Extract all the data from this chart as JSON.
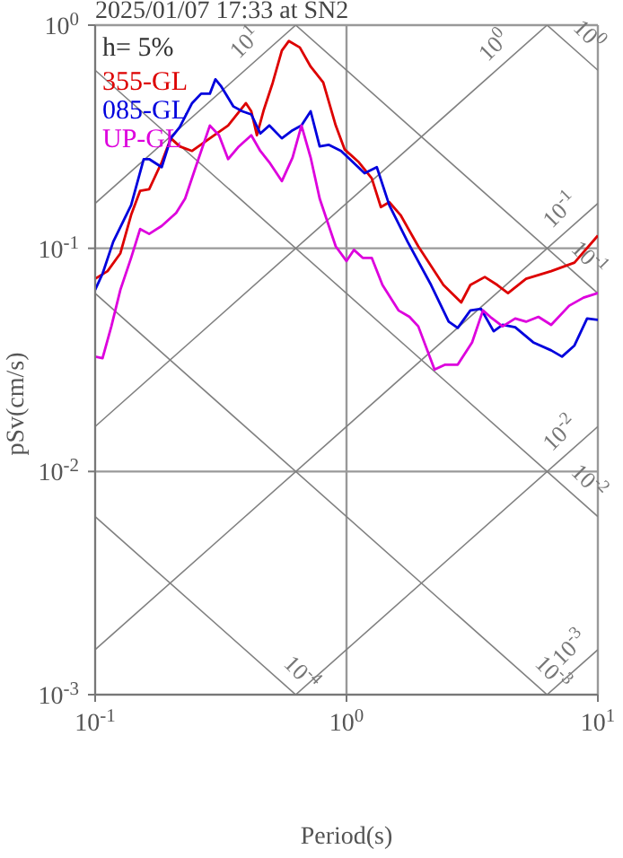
{
  "chart_data": {
    "type": "line",
    "title": "2025/01/07 17:33 at SN2",
    "xlabel": "Period(s)",
    "ylabel": "pSv(cm/s)",
    "log": "xy",
    "grid": true,
    "legend": "top left",
    "xlim": [
      0.1,
      10
    ],
    "xticks": [
      {
        "value": 0.1,
        "label": "10$^{-1}$"
      },
      {
        "value": 1,
        "label": "10$^{0}$"
      },
      {
        "value": 10,
        "label": "10$^{1}$"
      }
    ],
    "ylim": [
      0.001,
      1
    ],
    "yticks": [
      {
        "value": 0.001,
        "label": "10$^{-3}$"
      },
      {
        "value": 0.01,
        "label": "10$^{-2}$"
      },
      {
        "value": 0.1,
        "label": "10$^{-1}$"
      },
      {
        "value": 1,
        "label": "10$^{0}$"
      }
    ],
    "annotations": [
      "h= 5%",
      {
        "text": "10$^{1}$",
        "x": 0.45,
        "y": 0.72
      },
      {
        "text": "10$^{0}$",
        "x": 4.4,
        "y": 0.7
      },
      {
        "text": "10$^{0}$",
        "x": 8.07,
        "y": 0.78
      },
      {
        "text": "10$^{-1}$",
        "x": 8.07,
        "y": 0.128
      },
      {
        "text": "10$^{-1}$",
        "x": 8.07,
        "y": 0.078
      },
      {
        "text": "10$^{-2}$",
        "x": 8.07,
        "y": 0.0128
      },
      {
        "text": "10$^{-2}$",
        "x": 8.07,
        "y": 0.0078
      },
      {
        "text": "10$^{-3}$",
        "x": 8.8,
        "y": 0.0014
      },
      {
        "text": "10$^{-3}$",
        "x": 5.8,
        "y": 0.00108
      },
      {
        "text": "10$^{-4}$",
        "x": 0.58,
        "y": 0.00108
      }
    ],
    "series": [
      {
        "type": "line",
        "color": "#808080",
        "x": [
          0.1,
          0.628
        ],
        "values": [
          0.159,
          1
        ]
      },
      {
        "type": "line",
        "color": "#808080",
        "x": [
          0.1,
          6.28
        ],
        "values": [
          0.0159,
          1
        ]
      },
      {
        "type": "line",
        "color": "#808080",
        "x": [
          0.1,
          10
        ],
        "values": [
          0.00159,
          0.159
        ]
      },
      {
        "type": "line",
        "color": "#808080",
        "x": [
          0.628,
          10
        ],
        "values": [
          0.001,
          0.0159
        ]
      },
      {
        "type": "line",
        "color": "#808080",
        "x": [
          6.28,
          10
        ],
        "values": [
          0.001,
          0.00159
        ]
      },
      {
        "type": "line",
        "color": "#808080",
        "x": [
          6.28,
          10
        ],
        "values": [
          1,
          0.628
        ]
      },
      {
        "type": "line",
        "color": "#808080",
        "x": [
          0.628,
          10
        ],
        "values": [
          1,
          0.0628
        ]
      },
      {
        "type": "line",
        "color": "#808080",
        "x": [
          0.1,
          10
        ],
        "values": [
          0.628,
          0.00628
        ]
      },
      {
        "type": "line",
        "color": "#808080",
        "x": [
          0.1,
          6.28
        ],
        "values": [
          0.0628,
          0.001
        ]
      },
      {
        "type": "line",
        "color": "#808080",
        "x": [
          0.1,
          0.628
        ],
        "values": [
          0.00628,
          0.001
        ]
      },
      {
        "name": "355-GL",
        "color": "#dd0000",
        "x": [
          0.1,
          0.112,
          0.126,
          0.139,
          0.151,
          0.164,
          0.184,
          0.2,
          0.217,
          0.243,
          0.286,
          0.338,
          0.398,
          0.418,
          0.44,
          0.469,
          0.509,
          0.553,
          0.59,
          0.652,
          0.72,
          0.808,
          0.906,
          0.984,
          1.12,
          1.26,
          1.37,
          1.48,
          1.64,
          1.93,
          2.43,
          2.86,
          3.11,
          3.55,
          3.98,
          4.39,
          5.18,
          6.52,
          8.07,
          10
        ],
        "values": [
          0.073,
          0.079,
          0.095,
          0.141,
          0.181,
          0.184,
          0.243,
          0.311,
          0.286,
          0.273,
          0.311,
          0.355,
          0.447,
          0.411,
          0.321,
          0.418,
          0.553,
          0.769,
          0.849,
          0.794,
          0.652,
          0.553,
          0.355,
          0.277,
          0.243,
          0.206,
          0.153,
          0.161,
          0.141,
          0.102,
          0.0685,
          0.0572,
          0.0685,
          0.0744,
          0.0685,
          0.063,
          0.073,
          0.079,
          0.0863,
          0.114
        ]
      },
      {
        "name": "085-GL",
        "color": "#0000dd",
        "x": [
          0.1,
          0.107,
          0.118,
          0.139,
          0.156,
          0.164,
          0.184,
          0.2,
          0.217,
          0.243,
          0.264,
          0.286,
          0.301,
          0.316,
          0.355,
          0.385,
          0.418,
          0.454,
          0.493,
          0.553,
          0.61,
          0.662,
          0.72,
          0.782,
          0.849,
          0.952,
          1.03,
          1.18,
          1.32,
          1.48,
          1.75,
          2.17,
          2.55,
          2.77,
          3.11,
          3.43,
          3.85,
          4.18,
          4.69,
          5.53,
          6.52,
          7.2,
          8.07,
          9.06,
          10
        ],
        "values": [
          0.0652,
          0.0769,
          0.107,
          0.156,
          0.251,
          0.251,
          0.231,
          0.311,
          0.349,
          0.447,
          0.493,
          0.493,
          0.572,
          0.535,
          0.432,
          0.411,
          0.398,
          0.327,
          0.355,
          0.311,
          0.338,
          0.355,
          0.411,
          0.286,
          0.291,
          0.273,
          0.251,
          0.217,
          0.231,
          0.156,
          0.107,
          0.0685,
          0.0469,
          0.044,
          0.0527,
          0.0535,
          0.0425,
          0.0454,
          0.0443,
          0.0379,
          0.0349,
          0.0327,
          0.0367,
          0.0485,
          0.0478
        ]
      },
      {
        "name": "UP-GL",
        "color": "#dd00dd",
        "x": [
          0.1,
          0.107,
          0.116,
          0.126,
          0.139,
          0.151,
          0.164,
          0.184,
          0.21,
          0.228,
          0.255,
          0.286,
          0.311,
          0.338,
          0.373,
          0.418,
          0.454,
          0.493,
          0.553,
          0.61,
          0.662,
          0.72,
          0.782,
          0.906,
          1.0,
          1.07,
          1.16,
          1.26,
          1.39,
          1.61,
          1.78,
          1.93,
          2.24,
          2.47,
          2.77,
          3.16,
          3.49,
          3.73,
          4.18,
          4.69,
          5.18,
          5.8,
          6.52,
          7.69,
          8.77,
          10
        ],
        "values": [
          0.0327,
          0.0322,
          0.0447,
          0.0652,
          0.0906,
          0.122,
          0.116,
          0.126,
          0.144,
          0.167,
          0.243,
          0.355,
          0.321,
          0.251,
          0.286,
          0.321,
          0.273,
          0.243,
          0.2,
          0.255,
          0.355,
          0.255,
          0.167,
          0.102,
          0.0877,
          0.0984,
          0.0906,
          0.0906,
          0.0685,
          0.0527,
          0.0493,
          0.0447,
          0.0286,
          0.0301,
          0.0301,
          0.0379,
          0.0527,
          0.0493,
          0.0447,
          0.0485,
          0.0469,
          0.0493,
          0.0454,
          0.0553,
          0.0601,
          0.063
        ]
      }
    ]
  }
}
